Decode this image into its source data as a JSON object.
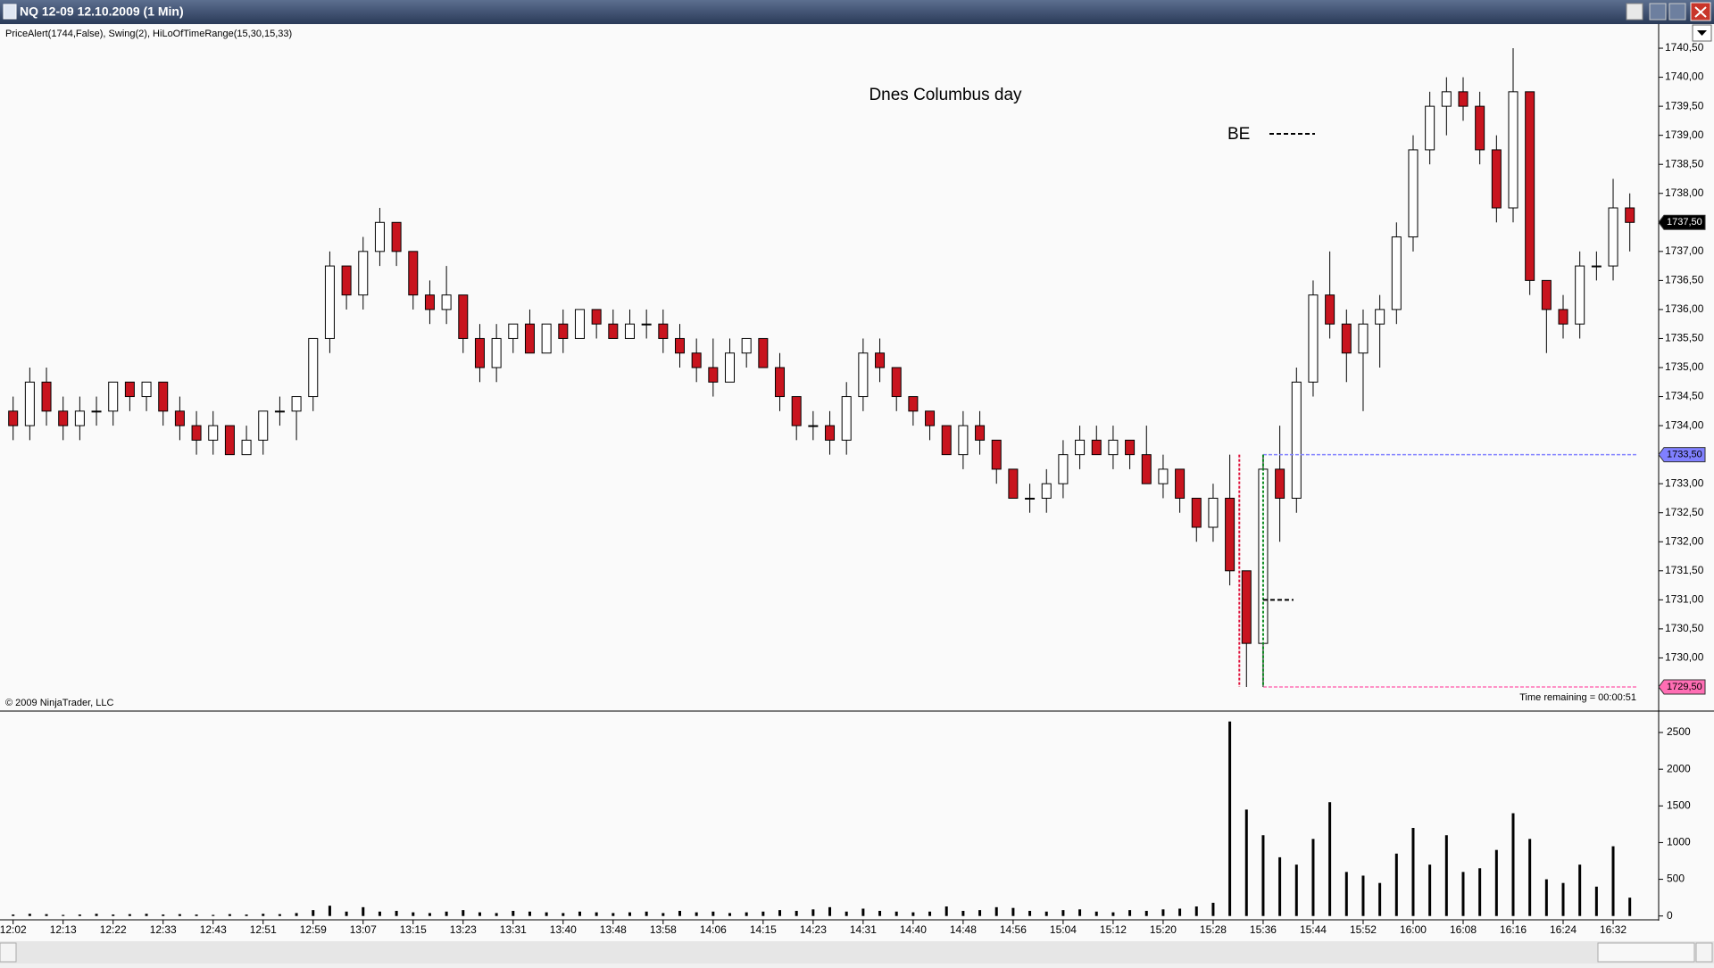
{
  "window_title": "NQ 12-09  12.10.2009 (1 Min)",
  "indicator_label": "PriceAlert(1744,False), Swing(2), HiLoOfTimeRange(15,30,15,33)",
  "copyright": "© 2009 NinjaTrader, LLC",
  "time_remaining": "Time remaining = 00:00:51",
  "chart_data": [
    {
      "type": "candlestick",
      "annotations": [
        "Dnes Columbus day",
        "BE"
      ],
      "categories": [
        "12:02",
        null,
        null,
        "12:13",
        null,
        null,
        "12:22",
        null,
        null,
        "12:33",
        null,
        null,
        "12:43",
        null,
        null,
        "12:51",
        null,
        null,
        "12:59",
        null,
        null,
        "13:07",
        null,
        null,
        "13:15",
        null,
        null,
        "13:23",
        null,
        null,
        "13:31",
        null,
        null,
        "13:40",
        null,
        null,
        "13:48",
        null,
        null,
        "13:58",
        null,
        null,
        "14:06",
        null,
        null,
        "14:15",
        null,
        null,
        "14:23",
        null,
        null,
        "14:31",
        null,
        null,
        "14:40",
        null,
        null,
        "14:48",
        null,
        null,
        "14:56",
        null,
        null,
        "15:04",
        null,
        null,
        "15:12",
        null,
        null,
        "15:20",
        null,
        null,
        "15:28",
        null,
        null,
        "15:36",
        null,
        null,
        "15:44",
        null,
        null,
        "15:52",
        null,
        null,
        "16:00",
        null,
        null,
        "16:08",
        null,
        null,
        "16:16",
        null,
        null,
        "16:24",
        null,
        null,
        "16:32",
        null
      ],
      "open": [
        1734.25,
        1734.0,
        1734.75,
        1734.25,
        1734.0,
        1734.25,
        1734.25,
        1734.75,
        1734.5,
        1734.75,
        1734.25,
        1734.0,
        1733.75,
        1734.0,
        1733.5,
        1733.75,
        1734.25,
        1734.25,
        1734.5,
        1735.5,
        1736.75,
        1736.25,
        1737.0,
        1737.5,
        1737.0,
        1736.25,
        1736.0,
        1736.25,
        1735.5,
        1735.0,
        1735.5,
        1735.75,
        1735.25,
        1735.75,
        1735.5,
        1736.0,
        1735.75,
        1735.5,
        1735.75,
        1735.75,
        1735.5,
        1735.25,
        1735.0,
        1734.75,
        1735.25,
        1735.5,
        1735.0,
        1734.5,
        1734.0,
        1734.0,
        1733.75,
        1734.5,
        1735.25,
        1735.0,
        1734.5,
        1734.25,
        1734.0,
        1733.5,
        1734.0,
        1733.75,
        1733.25,
        1732.75,
        1732.75,
        1733.0,
        1733.5,
        1733.75,
        1733.5,
        1733.75,
        1733.5,
        1733.0,
        1733.25,
        1732.75,
        1732.25,
        1732.75,
        1731.5,
        1730.25,
        1733.25,
        1732.75,
        1734.75,
        1736.25,
        1735.75,
        1735.25,
        1735.75,
        1736.0,
        1737.25,
        1738.75,
        1739.5,
        1739.75,
        1739.5,
        1738.75,
        1737.75,
        1739.75,
        1736.5,
        1736.0,
        1735.75,
        1736.75,
        1736.75,
        1737.75
      ],
      "high": [
        1734.5,
        1735.0,
        1735.0,
        1734.5,
        1734.5,
        1734.5,
        1734.75,
        1734.75,
        1734.75,
        1734.75,
        1734.5,
        1734.25,
        1734.25,
        1734.0,
        1734.0,
        1734.25,
        1734.5,
        1734.5,
        1735.5,
        1737.0,
        1736.75,
        1737.25,
        1737.75,
        1737.5,
        1737.0,
        1736.5,
        1736.75,
        1736.25,
        1735.75,
        1735.75,
        1735.75,
        1736.0,
        1735.75,
        1736.0,
        1736.0,
        1736.0,
        1736.0,
        1736.0,
        1736.0,
        1736.0,
        1735.75,
        1735.5,
        1735.5,
        1735.5,
        1735.5,
        1735.5,
        1735.25,
        1734.5,
        1734.25,
        1734.25,
        1734.75,
        1735.5,
        1735.5,
        1735.0,
        1734.5,
        1734.25,
        1734.0,
        1734.25,
        1734.25,
        1733.75,
        1733.25,
        1733.0,
        1733.25,
        1733.75,
        1734.0,
        1734.0,
        1734.0,
        1733.75,
        1734.0,
        1733.5,
        1733.25,
        1732.75,
        1733.0,
        1733.5,
        1731.5,
        1733.5,
        1734.0,
        1735.0,
        1736.5,
        1737.0,
        1736.0,
        1736.0,
        1736.25,
        1737.5,
        1739.0,
        1739.75,
        1740.0,
        1740.0,
        1739.75,
        1739.0,
        1740.5,
        1739.75,
        1736.5,
        1736.25,
        1737.0,
        1737.0,
        1738.25,
        1738.0
      ],
      "low": [
        1733.75,
        1733.75,
        1734.0,
        1733.75,
        1733.75,
        1734.0,
        1734.0,
        1734.25,
        1734.25,
        1734.0,
        1733.75,
        1733.5,
        1733.5,
        1733.5,
        1733.5,
        1733.5,
        1734.0,
        1733.75,
        1734.25,
        1735.25,
        1736.0,
        1736.0,
        1736.75,
        1736.75,
        1736.0,
        1735.75,
        1735.75,
        1735.25,
        1734.75,
        1734.75,
        1735.25,
        1735.25,
        1735.25,
        1735.25,
        1735.5,
        1735.5,
        1735.5,
        1735.5,
        1735.5,
        1735.25,
        1735.0,
        1734.75,
        1734.5,
        1734.75,
        1735.0,
        1735.0,
        1734.25,
        1733.75,
        1733.75,
        1733.5,
        1733.5,
        1734.25,
        1734.75,
        1734.25,
        1734.0,
        1733.75,
        1733.5,
        1733.25,
        1733.5,
        1733.0,
        1732.75,
        1732.5,
        1732.5,
        1732.75,
        1733.25,
        1733.5,
        1733.25,
        1733.25,
        1733.0,
        1732.75,
        1732.5,
        1732.0,
        1732.0,
        1731.25,
        1729.5,
        1729.5,
        1732.0,
        1732.5,
        1734.5,
        1735.5,
        1734.75,
        1734.25,
        1735.0,
        1735.75,
        1737.0,
        1738.5,
        1739.0,
        1739.25,
        1738.5,
        1737.5,
        1737.5,
        1736.25,
        1735.25,
        1735.5,
        1735.5,
        1736.5,
        1736.5,
        1737.0
      ],
      "close": [
        1734.0,
        1734.75,
        1734.25,
        1734.0,
        1734.25,
        1734.25,
        1734.75,
        1734.5,
        1734.75,
        1734.25,
        1734.0,
        1733.75,
        1734.0,
        1733.5,
        1733.75,
        1734.25,
        1734.25,
        1734.5,
        1735.5,
        1736.75,
        1736.25,
        1737.0,
        1737.5,
        1737.0,
        1736.25,
        1736.0,
        1736.25,
        1735.5,
        1735.0,
        1735.5,
        1735.75,
        1735.25,
        1735.75,
        1735.5,
        1736.0,
        1735.75,
        1735.5,
        1735.75,
        1735.75,
        1735.5,
        1735.25,
        1735.0,
        1734.75,
        1735.25,
        1735.5,
        1735.0,
        1734.5,
        1734.0,
        1734.0,
        1733.75,
        1734.5,
        1735.25,
        1735.0,
        1734.5,
        1734.25,
        1734.0,
        1733.5,
        1734.0,
        1733.75,
        1733.25,
        1732.75,
        1732.75,
        1733.0,
        1733.5,
        1733.75,
        1733.5,
        1733.75,
        1733.5,
        1733.0,
        1733.25,
        1732.75,
        1732.25,
        1732.75,
        1731.5,
        1730.25,
        1733.25,
        1732.75,
        1734.75,
        1736.25,
        1735.75,
        1735.25,
        1735.75,
        1736.0,
        1737.25,
        1738.75,
        1739.5,
        1739.75,
        1739.5,
        1738.75,
        1737.75,
        1739.75,
        1736.5,
        1736.0,
        1735.75,
        1736.75,
        1736.75,
        1737.75,
        1737.5
      ],
      "up_color": "#ffffff",
      "down_color": "#c8141e",
      "ylim": [
        1729.1,
        1740.9
      ],
      "yticks": [
        {
          "value": 1730,
          "label": "1730,00"
        },
        {
          "value": 1730.5,
          "label": "1730,50"
        },
        {
          "value": 1731,
          "label": "1731,00"
        },
        {
          "value": 1731.5,
          "label": "1731,50"
        },
        {
          "value": 1732,
          "label": "1732,00"
        },
        {
          "value": 1732.5,
          "label": "1732,50"
        },
        {
          "value": 1733,
          "label": "1733,00"
        },
        {
          "value": 1734,
          "label": "1734,00"
        },
        {
          "value": 1734.5,
          "label": "1734,50"
        },
        {
          "value": 1735,
          "label": "1735,00"
        },
        {
          "value": 1735.5,
          "label": "1735,50"
        },
        {
          "value": 1736,
          "label": "1736,00"
        },
        {
          "value": 1736.5,
          "label": "1736,50"
        },
        {
          "value": 1737,
          "label": "1737,00"
        },
        {
          "value": 1738,
          "label": "1738,00"
        },
        {
          "value": 1738.5,
          "label": "1738,50"
        },
        {
          "value": 1739,
          "label": "1739,00"
        },
        {
          "value": 1739.5,
          "label": "1739,50"
        },
        {
          "value": 1740,
          "label": "1740,00"
        },
        {
          "value": 1740.5,
          "label": "1740,50"
        }
      ],
      "price_markers": [
        {
          "value": 1737.5,
          "label": "1737,50",
          "color": "#000000",
          "line": false
        },
        {
          "value": 1733.5,
          "label": "1733,50",
          "color": "#8080ff",
          "line": true
        },
        {
          "value": 1729.5,
          "label": "1729,50",
          "color": "#ff6eb4",
          "line": true
        }
      ]
    },
    {
      "type": "bar",
      "values": [
        20,
        30,
        25,
        15,
        20,
        30,
        20,
        25,
        30,
        20,
        25,
        20,
        15,
        25,
        20,
        30,
        25,
        40,
        80,
        140,
        60,
        120,
        60,
        70,
        50,
        40,
        60,
        80,
        50,
        40,
        70,
        60,
        50,
        40,
        60,
        50,
        40,
        50,
        60,
        40,
        70,
        50,
        60,
        40,
        50,
        60,
        80,
        70,
        90,
        120,
        60,
        100,
        70,
        60,
        50,
        60,
        130,
        70,
        80,
        120,
        110,
        70,
        60,
        80,
        90,
        60,
        50,
        80,
        70,
        90,
        100,
        130,
        180,
        2650,
        1450,
        1100,
        800,
        700,
        1050,
        1550,
        600,
        550,
        450,
        850,
        1200,
        700,
        1100,
        600,
        650,
        900,
        1400,
        1050,
        500,
        450,
        700,
        400,
        950,
        250
      ],
      "color": "#000000",
      "ylim": [
        -40,
        2780
      ],
      "yticks": [
        0,
        500,
        1000,
        1500,
        2000,
        2500
      ]
    }
  ]
}
